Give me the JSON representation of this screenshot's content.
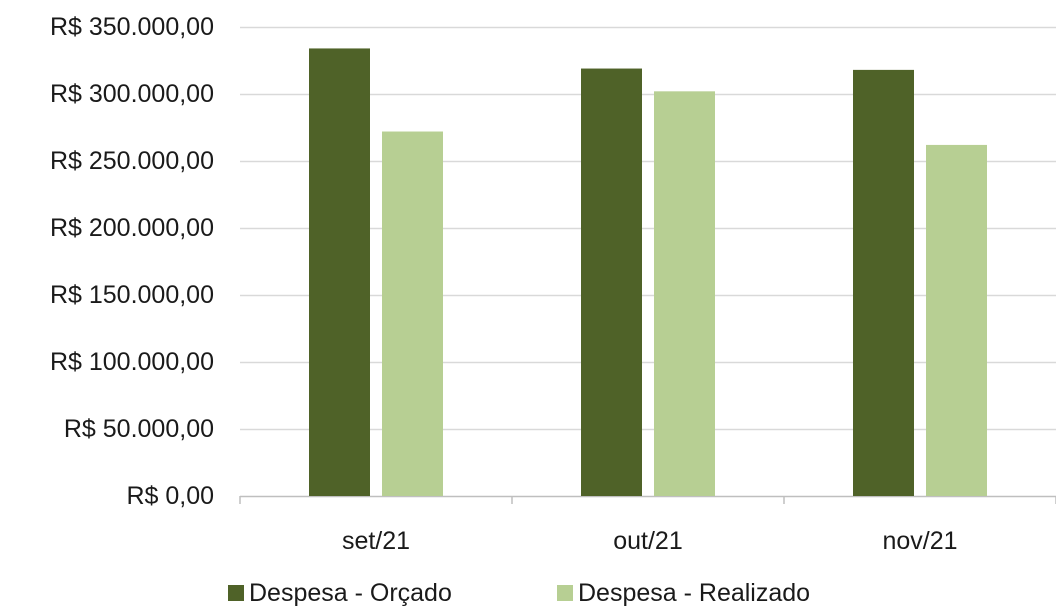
{
  "chart_data": {
    "type": "bar",
    "categories": [
      "set/21",
      "out/21",
      "nov/21"
    ],
    "series": [
      {
        "name": "Despesa - Orçado",
        "color": "#4f6228",
        "values": [
          334000,
          319000,
          318000
        ]
      },
      {
        "name": "Despesa - Realizado",
        "color": "#b7cf93",
        "values": [
          272000,
          302000,
          262000
        ]
      }
    ],
    "y_tick_values": [
      0,
      50000,
      100000,
      150000,
      200000,
      250000,
      300000,
      350000
    ],
    "y_tick_labels": [
      "R$ 0,00",
      "R$ 50.000,00",
      "R$ 100.000,00",
      "R$ 150.000,00",
      "R$ 200.000,00",
      "R$ 250.000,00",
      "R$ 300.000,00",
      "R$ 350.000,00"
    ],
    "ylim": [
      0,
      350000
    ],
    "grid": true,
    "legend_position": "bottom",
    "title": "",
    "xlabel": "",
    "ylabel": ""
  }
}
